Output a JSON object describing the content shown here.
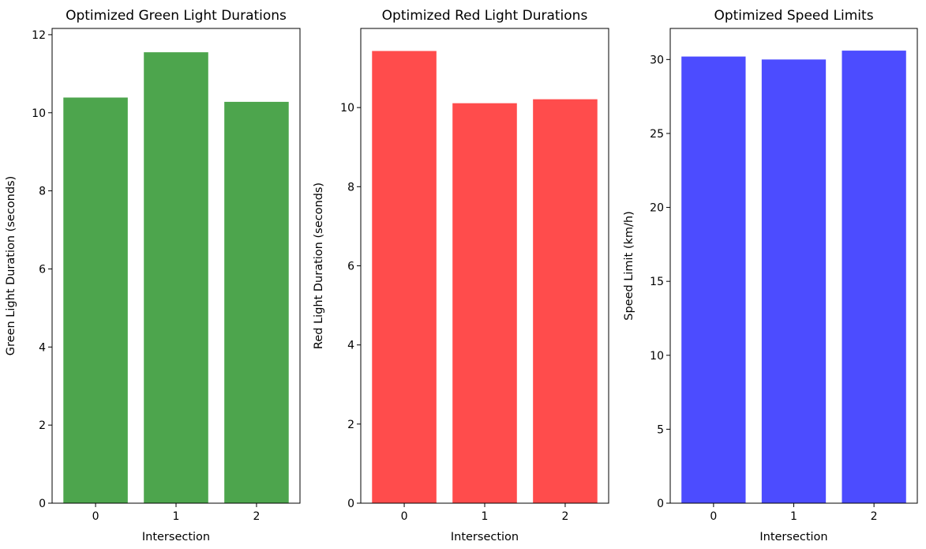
{
  "chart_data": [
    {
      "type": "bar",
      "title": "Optimized Green Light Durations",
      "xlabel": "Intersection",
      "ylabel": "Green Light Duration (seconds)",
      "categories": [
        "0",
        "1",
        "2"
      ],
      "values": [
        10.39,
        11.55,
        10.28
      ],
      "ylim": [
        0,
        12.16
      ],
      "yticks": [
        "0",
        "2",
        "4",
        "6",
        "8",
        "10",
        "12"
      ],
      "color": "#4da54d"
    },
    {
      "type": "bar",
      "title": "Optimized Red Light Durations",
      "xlabel": "Intersection",
      "ylabel": "Red Light Duration (seconds)",
      "categories": [
        "0",
        "1",
        "2"
      ],
      "values": [
        11.43,
        10.11,
        10.21
      ],
      "ylim": [
        0,
        12.0
      ],
      "yticks": [
        "0",
        "2",
        "4",
        "6",
        "8",
        "10"
      ],
      "color": "#ff4c4c"
    },
    {
      "type": "bar",
      "title": "Optimized Speed Limits",
      "xlabel": "Intersection",
      "ylabel": "Speed Limit (km/h)",
      "categories": [
        "0",
        "1",
        "2"
      ],
      "values": [
        30.2,
        30.0,
        30.6
      ],
      "ylim": [
        0,
        32.1
      ],
      "yticks": [
        "0",
        "5",
        "10",
        "15",
        "20",
        "25",
        "30"
      ],
      "color": "#4c4cff"
    }
  ]
}
